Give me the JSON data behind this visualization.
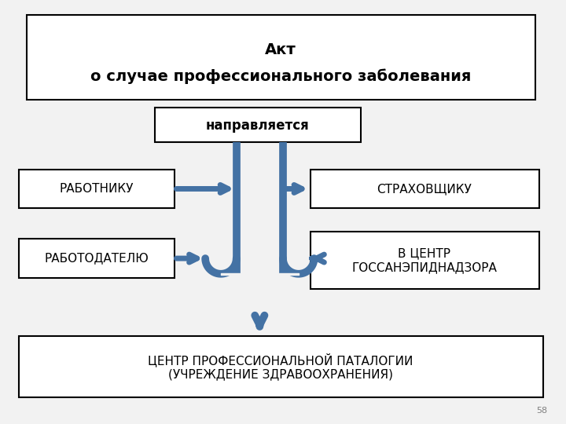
{
  "background_color": "#f2f2f2",
  "title_line1": "Акт",
  "title_line2": "о случае профессионального заболевания",
  "subtitle": "направляется",
  "arrow_color": "#4472a4",
  "box_edge_color": "#000000",
  "text_color": "#000000",
  "title_fontsize": 14,
  "label_fontsize": 11,
  "subtitle_fontsize": 12,
  "page_number": "58",
  "pipe_lw": 7,
  "branch_lw": 5
}
